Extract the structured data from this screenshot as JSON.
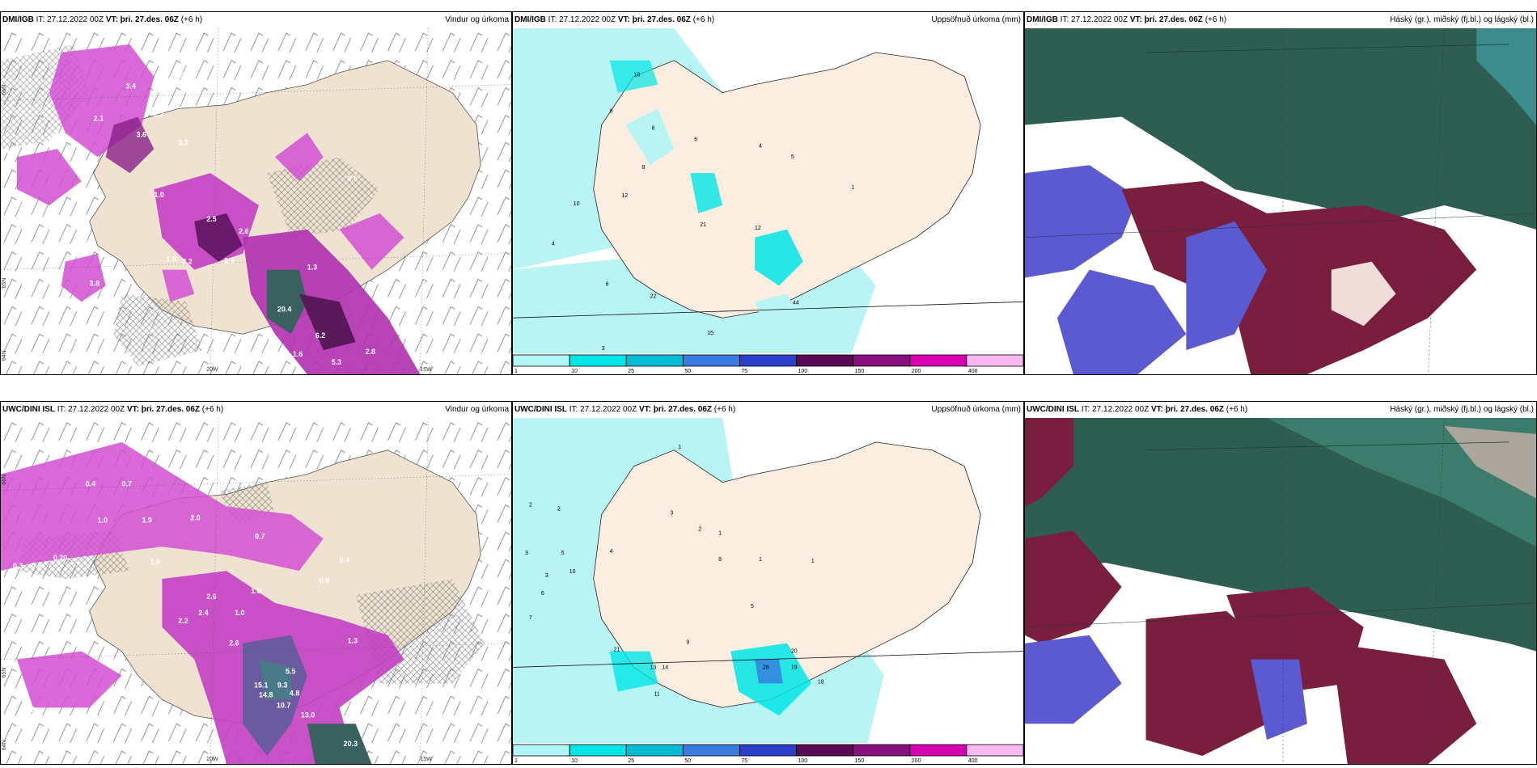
{
  "panels": {
    "p1": {
      "model": "DMI/IGB",
      "it_label": "IT:",
      "it": "27.12.2022 00Z",
      "vt_label": "VT:",
      "vt": "þri. 27.des. 06Z",
      "lead": "(+6 h)",
      "product": "Vindur og úrkoma"
    },
    "p2": {
      "model": "DMI/IGB",
      "it_label": "IT:",
      "it": "27.12.2022 00Z",
      "vt_label": "VT:",
      "vt": "þri. 27.des. 06Z",
      "lead": "(+6 h)",
      "product": "Uppsöfnuð úrkoma (mm)"
    },
    "p3": {
      "model": "DMI/IGB",
      "it_label": "IT:",
      "it": "27.12.2022 00Z",
      "vt_label": "VT:",
      "vt": "þri. 27.des. 06Z",
      "lead": "(+6 h)",
      "product": "Háský (gr.), miðský (fj.bl.) og lágský (bl.)"
    },
    "p4": {
      "model": "UWC/DINI ISL",
      "it_label": "IT:",
      "it": "27.12.2022 00Z",
      "vt_label": "VT:",
      "vt": "þri. 27.des. 06Z",
      "lead": "(+6 h)",
      "product": "Vindur og úrkoma"
    },
    "p5": {
      "model": "UWC/DINI ISL",
      "it_label": "IT:",
      "it": "27.12.2022 00Z",
      "vt_label": "VT:",
      "vt": "þri. 27.des. 06Z",
      "lead": "(+6 h)",
      "product": "Uppsöfnuð úrkoma (mm)"
    },
    "p6": {
      "model": "UWC/DINI ISL",
      "it_label": "IT:",
      "it": "27.12.2022 00Z",
      "vt_label": "VT:",
      "vt": "þri. 27.des. 06Z",
      "lead": "(+6 h)",
      "product": "Háský (gr.), miðský (fj.bl.) og lágský (bl.)"
    }
  },
  "axes": {
    "lat_66": "66N",
    "lat_65": "65N",
    "lat_64": "64N",
    "lon_20": "20W",
    "lon_15": "15W"
  },
  "wind_labels_top": [
    "3.4",
    "0.5",
    "2.1",
    "2.3",
    "3.6",
    "3.3",
    "0.5",
    "0.7",
    "2.4",
    "1.0",
    "0.5",
    "2.5",
    "2.6",
    "2.3",
    "1.9",
    "2.2",
    "2.9",
    "1.3",
    "3.8",
    "20.4",
    "6.2",
    "5.3",
    "2.8",
    "1.6"
  ],
  "wind_labels_bottom": [
    "0.5",
    "0.7",
    "0.4",
    "1.0",
    "1.9",
    "2.0",
    "0.7",
    "0.3",
    "0.2",
    "0.20",
    "1.8",
    "2.6",
    "2.4",
    "2.2",
    "1.6",
    "1.3",
    "0.4",
    "2.6",
    "1.0",
    "15.1",
    "9.3",
    "14.8",
    "4.8",
    "10.7",
    "13.0",
    "20.3",
    "5.5",
    "2.2",
    "0.6"
  ],
  "precip_labels_top": [
    "10",
    "8",
    "8",
    "6",
    "4",
    "5",
    "8",
    "12",
    "10",
    "12",
    "1",
    "4",
    "6",
    "22",
    "44",
    "15",
    "3",
    "21"
  ],
  "precip_labels_bottom": [
    "1",
    "2",
    "2",
    "3",
    "2",
    "1",
    "3",
    "5",
    "4",
    "1",
    "5",
    "3",
    "6",
    "7",
    "10",
    "21",
    "28",
    "20",
    "19",
    "18",
    "13",
    "14",
    "11",
    "9",
    "1",
    "8"
  ],
  "colorbar": {
    "ticks": [
      "1",
      "10",
      "25",
      "50",
      "75",
      "100",
      "150",
      "200",
      "400"
    ],
    "colors": [
      "#b4f5f5",
      "#00e5e5",
      "#00bcd4",
      "#3a7be0",
      "#2b3fc8",
      "#5a0a55",
      "#8a1080",
      "#d700b0",
      "#f7b7f0"
    ]
  }
}
